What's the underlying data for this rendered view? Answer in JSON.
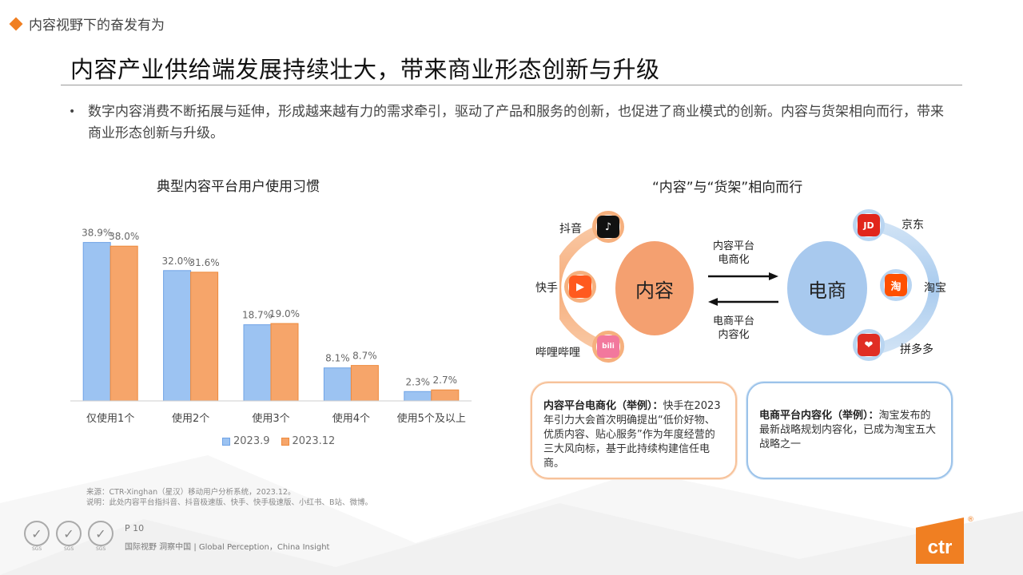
{
  "section": {
    "label": "内容视野下的奋发有为"
  },
  "title": "内容产业供给端发展持续壮大，带来商业形态创新与升级",
  "bullet": "数字内容消费不断拓展与延伸，形成越来越有力的需求牵引，驱动了产品和服务的创新，也促进了商业模式的创新。内容与货架相向而行，带来商业形态创新与升级。",
  "chart_data": {
    "type": "bar",
    "title": "典型内容平台用户使用习惯",
    "categories": [
      "仅使用1个",
      "使用2个",
      "使用3个",
      "使用4个",
      "使用5个及以上"
    ],
    "series": [
      {
        "name": "2023.9",
        "values": [
          38.9,
          32.0,
          18.7,
          8.1,
          2.3
        ],
        "labels": [
          "38.9%",
          "32.0%",
          "18.7%",
          "8.1%",
          "2.3%"
        ],
        "color": "#9cc3f2",
        "stroke": "#6fa3e6"
      },
      {
        "name": "2023.12",
        "values": [
          38.0,
          31.6,
          19.0,
          8.7,
          2.7
        ],
        "labels": [
          "38.0%",
          "31.6%",
          "19.0%",
          "8.7%",
          "2.7%"
        ],
        "color": "#f6a56a",
        "stroke": "#ee8a3c"
      }
    ],
    "ylim": [
      0,
      40
    ],
    "grid": false,
    "legend": "bottom"
  },
  "source": {
    "line1": "来源：CTR-Xinghan（星汉）移动用户分析系统，2023.12。",
    "line2": "说明：此处内容平台指抖音、抖音极速版、快手、快手极速版、小红书、B站、微博。"
  },
  "right": {
    "title": "“内容”与“货架”相向而行",
    "content_label": "内容",
    "ecom_label": "电商",
    "arrow_top": [
      "内容平台",
      "电商化"
    ],
    "arrow_bottom": [
      "电商平台",
      "内容化"
    ],
    "left_apps": [
      {
        "name": "抖音",
        "icon": "douyin-icon",
        "color": "#111111",
        "glyph": "♪"
      },
      {
        "name": "快手",
        "icon": "kuaishou-icon",
        "color": "#ff5a1f",
        "glyph": "▶"
      },
      {
        "name": "哔哩哔哩",
        "icon": "bilibili-icon",
        "color": "#f2789d",
        "glyph": "bili"
      }
    ],
    "right_apps": [
      {
        "name": "京东",
        "icon": "jd-icon",
        "color": "#e1251b",
        "glyph": "JD"
      },
      {
        "name": "淘宝",
        "icon": "taobao-icon",
        "color": "#ff5000",
        "glyph": "淘"
      },
      {
        "name": "拼多多",
        "icon": "pinduoduo-icon",
        "color": "#e02e24",
        "glyph": "❤"
      }
    ],
    "card_left": {
      "lead": "内容平台电商化（举例）：",
      "text": "快手在2023年引力大会首次明确提出“低价好物、优质内容、贴心服务”作为年度经营的三大风向标，基于此持续构建信任电商。"
    },
    "card_right": {
      "lead": "电商平台内容化（举例）：",
      "text": "淘宝发布的最新战略规划内容化，已成为淘宝五大战略之一"
    }
  },
  "footer": {
    "page": "P 10",
    "tagline": "国际视野  洞察中国 | Global Perception，China Insight",
    "sgs": "SGS",
    "logo": "ctr",
    "reg": "®"
  }
}
